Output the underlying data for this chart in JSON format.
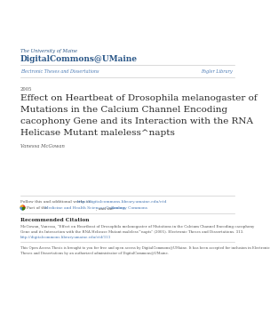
{
  "bg_color": "#ffffff",
  "header_small": "The University of Maine",
  "header_large": "DigitalCommons@UMaine",
  "header_color": "#2a5788",
  "nav_left": "Electronic Theses and Dissertations",
  "nav_right": "Fogler Library",
  "nav_color": "#4a7ab5",
  "year": "2005",
  "title_line1": "Effect on Heartbeat of Drosophila melanogaster of",
  "title_line2": "Mutations in the Calcium Channel Encoding",
  "title_line3": "cacophony Gene and its Interaction with the RNA",
  "title_line4": "Helicase Mutant maleless^napts",
  "title_color": "#2a2a2a",
  "author": "Vanessa McGowan",
  "author_color": "#555555",
  "follow_prefix": "Follow this and additional works at: ",
  "follow_link": "http://digitalcommons.library.umaine.edu/etd",
  "part_prefix": "Part of the ",
  "part_link1": "Medicine and Health Sciences Commons",
  "part_sep": ", and the ",
  "part_link2": "Zoology Commons",
  "link_color": "#4a7ab5",
  "rec_cite_header": "Recommended Citation",
  "rec_cite_line1": "McGowan, Vanessa, \"Effect on Heartbeat of Drosophila melanogaster of Mutations in the Calcium Channel Encoding cacophony",
  "rec_cite_line2": "Gene and its Interaction with the RNA Helicase Mutant maleless^napts\" (2005). Electronic Theses and Dissertations. 313.",
  "rec_cite_link": "http://digitalcommons.library.umaine.edu/etd/313",
  "open_access_line1": "This Open Access Thesis is brought to you for free and open access by DigitalCommons@UMaine. It has been accepted for inclusion in Electronic",
  "open_access_line2": "Theses and Dissertations by an authorized administrator of DigitalCommons@UMaine.",
  "line_color": "#cccccc",
  "text_color": "#555555",
  "icon_colors": [
    "#e63b2e",
    "#f5a623",
    "#4a90d9",
    "#417505"
  ]
}
